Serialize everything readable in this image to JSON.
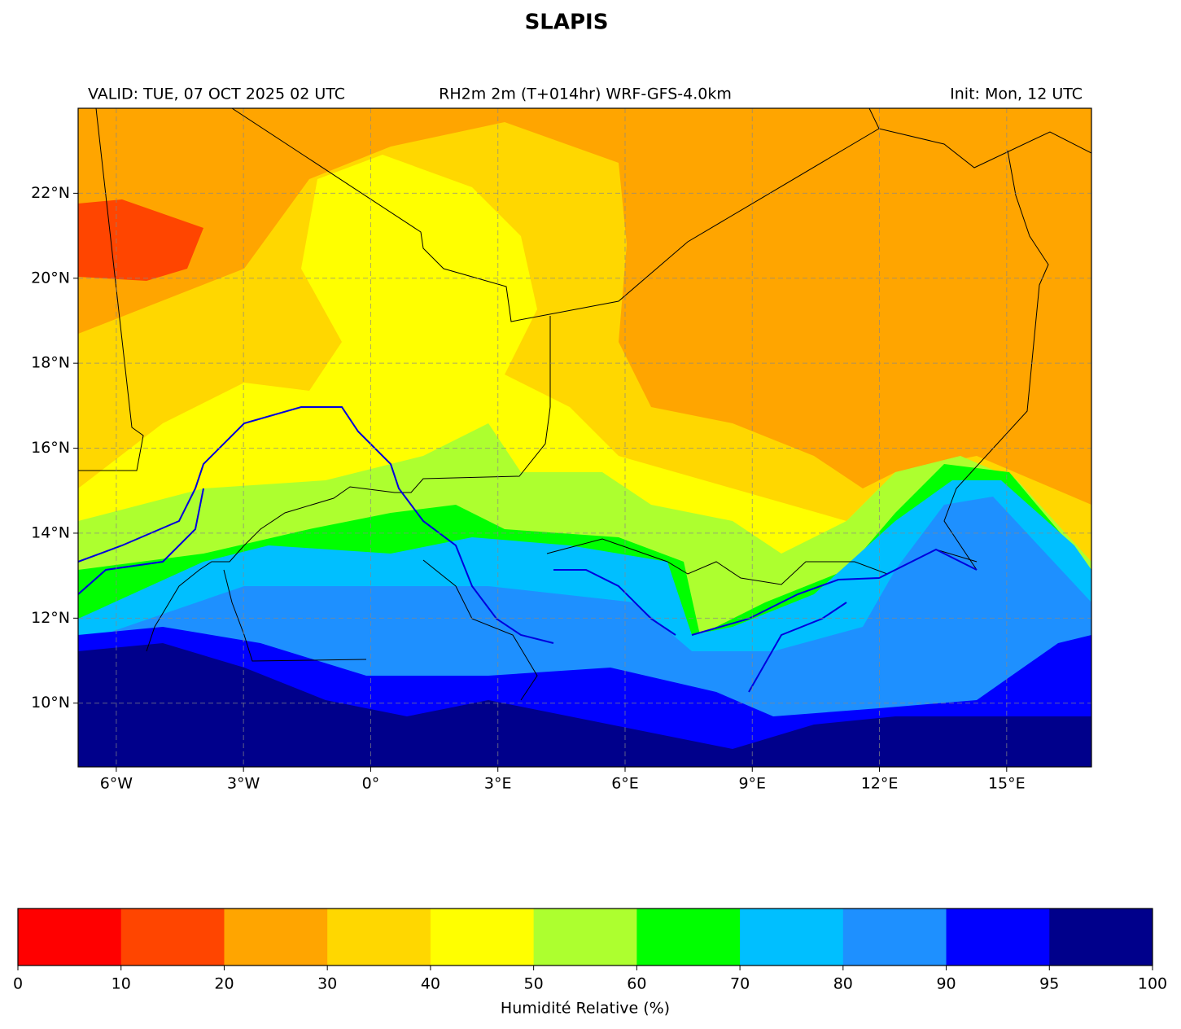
{
  "header": {
    "title": "SLAPIS",
    "valid": "VALID: TUE, 07 OCT 2025 02 UTC",
    "product": "RH2m 2m (T+014hr) WRF-GFS-4.0km",
    "init": "Init: Mon, 12 UTC"
  },
  "map": {
    "xlim": [
      -6.9,
      17
    ],
    "ylim": [
      8.5,
      24
    ],
    "grid": true,
    "xticks": [
      {
        "value": -6,
        "label": "6°W"
      },
      {
        "value": -3,
        "label": "3°W"
      },
      {
        "value": 0,
        "label": "0°"
      },
      {
        "value": 3,
        "label": "3°E"
      },
      {
        "value": 6,
        "label": "6°E"
      },
      {
        "value": 9,
        "label": "9°E"
      },
      {
        "value": 12,
        "label": "12°E"
      },
      {
        "value": 15,
        "label": "15°E"
      }
    ],
    "yticks": [
      {
        "value": 10,
        "label": "10°N"
      },
      {
        "value": 12,
        "label": "12°N"
      },
      {
        "value": 14,
        "label": "14°N"
      },
      {
        "value": 16,
        "label": "16°N"
      },
      {
        "value": 18,
        "label": "18°N"
      },
      {
        "value": 20,
        "label": "20°N"
      },
      {
        "value": 22,
        "label": "22°N"
      }
    ]
  },
  "colorbar": {
    "label": "Humidité Relative (%)",
    "boundaries": [
      0,
      10,
      20,
      30,
      40,
      50,
      60,
      70,
      80,
      90,
      95,
      100
    ],
    "colors": [
      "#ff0000",
      "#ff4500",
      "#ffa500",
      "#ffd700",
      "#ffff00",
      "#adff2f",
      "#00ff00",
      "#00bfff",
      "#1e90ff",
      "#0000ff",
      "#00008b"
    ]
  }
}
